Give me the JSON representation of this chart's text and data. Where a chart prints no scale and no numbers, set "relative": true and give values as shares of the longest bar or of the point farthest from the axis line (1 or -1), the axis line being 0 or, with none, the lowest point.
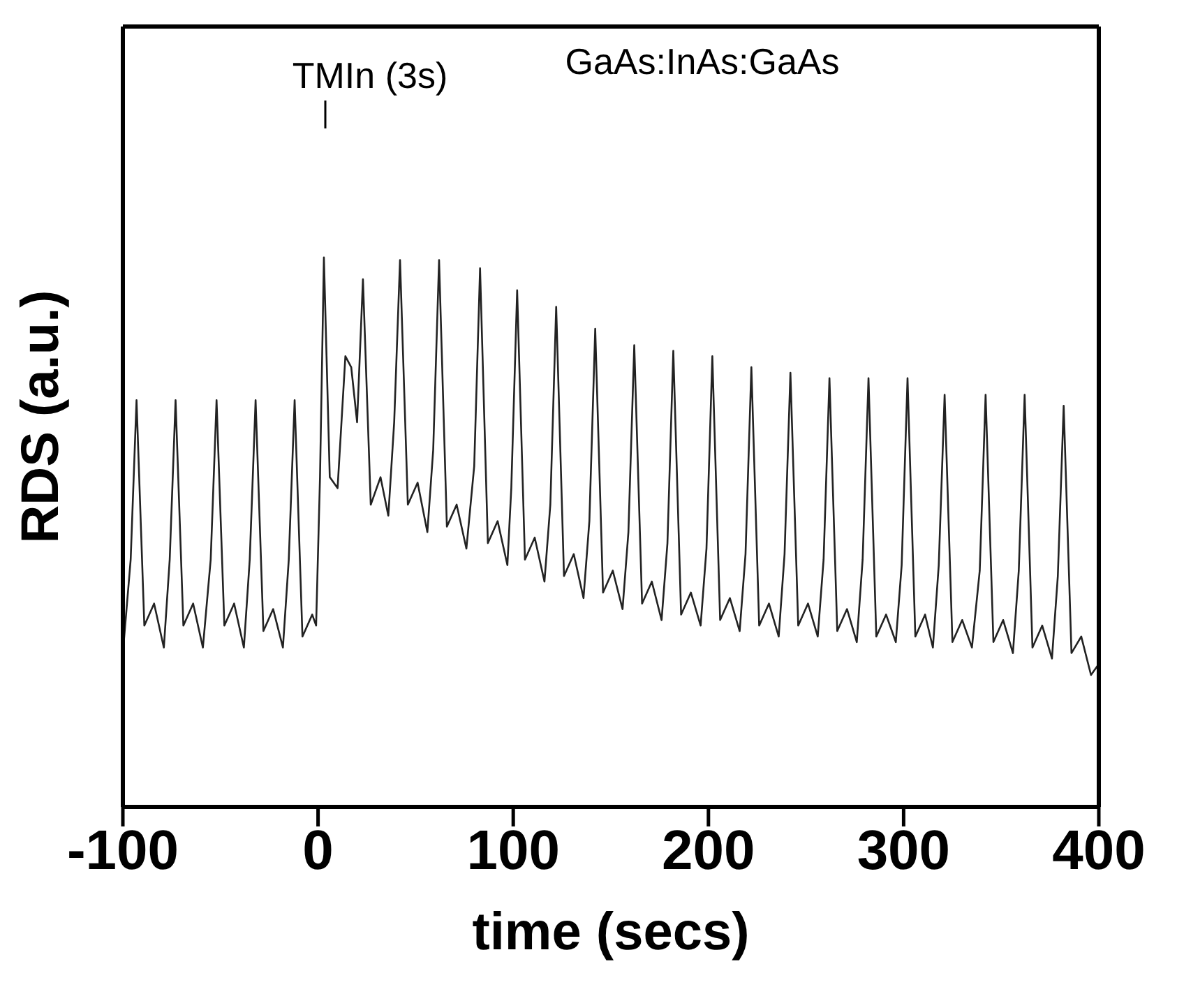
{
  "chart_data": {
    "type": "line",
    "relative": true,
    "xlabel": "time (secs)",
    "ylabel": "RDS (a.u.)",
    "xlim": [
      -100,
      400
    ],
    "xticks": [
      -100,
      0,
      100,
      200,
      300,
      400
    ],
    "grid": false,
    "legend": false,
    "marker": "none",
    "line_style": "solid",
    "annotations": [
      "TMIn (3s)",
      "GaAs:InAs:GaAs"
    ],
    "x": [
      -100,
      -96,
      -93,
      -89,
      -84,
      -79,
      -76,
      -73,
      -69,
      -64,
      -59,
      -55,
      -52,
      -48,
      -43,
      -38,
      -35,
      -32,
      -28,
      -23,
      -18,
      -15,
      -12,
      -8,
      -3,
      -1,
      1,
      3,
      6,
      10,
      14,
      17,
      20,
      23,
      27,
      32,
      36,
      39,
      42,
      46,
      51,
      56,
      59,
      62,
      66,
      71,
      76,
      80,
      83,
      87,
      92,
      97,
      99,
      102,
      106,
      111,
      116,
      119,
      122,
      126,
      131,
      136,
      139,
      142,
      146,
      151,
      156,
      159,
      162,
      166,
      171,
      176,
      179,
      182,
      186,
      191,
      196,
      199,
      202,
      206,
      211,
      216,
      219,
      222,
      226,
      231,
      236,
      239,
      242,
      246,
      251,
      256,
      259,
      262,
      266,
      271,
      276,
      279,
      282,
      286,
      291,
      296,
      299,
      302,
      306,
      311,
      315,
      318,
      321,
      325,
      330,
      335,
      339,
      342,
      346,
      351,
      356,
      359,
      362,
      366,
      371,
      376,
      379,
      382,
      386,
      391,
      396,
      400
    ],
    "series": [
      {
        "color": "#222222",
        "values": [
          0.28,
          0.45,
          0.74,
          0.33,
          0.37,
          0.29,
          0.45,
          0.74,
          0.33,
          0.37,
          0.29,
          0.45,
          0.74,
          0.33,
          0.37,
          0.29,
          0.45,
          0.74,
          0.32,
          0.36,
          0.29,
          0.45,
          0.74,
          0.31,
          0.35,
          0.33,
          0.6,
          1.0,
          0.6,
          0.58,
          0.82,
          0.8,
          0.7,
          0.96,
          0.55,
          0.6,
          0.53,
          0.7,
          0.995,
          0.55,
          0.59,
          0.5,
          0.65,
          0.995,
          0.51,
          0.55,
          0.47,
          0.62,
          0.98,
          0.48,
          0.52,
          0.44,
          0.58,
          0.94,
          0.45,
          0.49,
          0.41,
          0.55,
          0.91,
          0.42,
          0.46,
          0.38,
          0.52,
          0.87,
          0.39,
          0.43,
          0.36,
          0.5,
          0.84,
          0.37,
          0.41,
          0.34,
          0.48,
          0.83,
          0.35,
          0.39,
          0.33,
          0.47,
          0.82,
          0.34,
          0.38,
          0.32,
          0.46,
          0.8,
          0.33,
          0.37,
          0.31,
          0.46,
          0.79,
          0.33,
          0.37,
          0.31,
          0.45,
          0.78,
          0.32,
          0.36,
          0.3,
          0.45,
          0.78,
          0.31,
          0.35,
          0.3,
          0.44,
          0.78,
          0.31,
          0.35,
          0.29,
          0.44,
          0.75,
          0.3,
          0.34,
          0.29,
          0.43,
          0.75,
          0.3,
          0.34,
          0.28,
          0.43,
          0.75,
          0.29,
          0.33,
          0.27,
          0.42,
          0.73,
          0.28,
          0.31,
          0.24,
          0.26
        ]
      }
    ]
  }
}
